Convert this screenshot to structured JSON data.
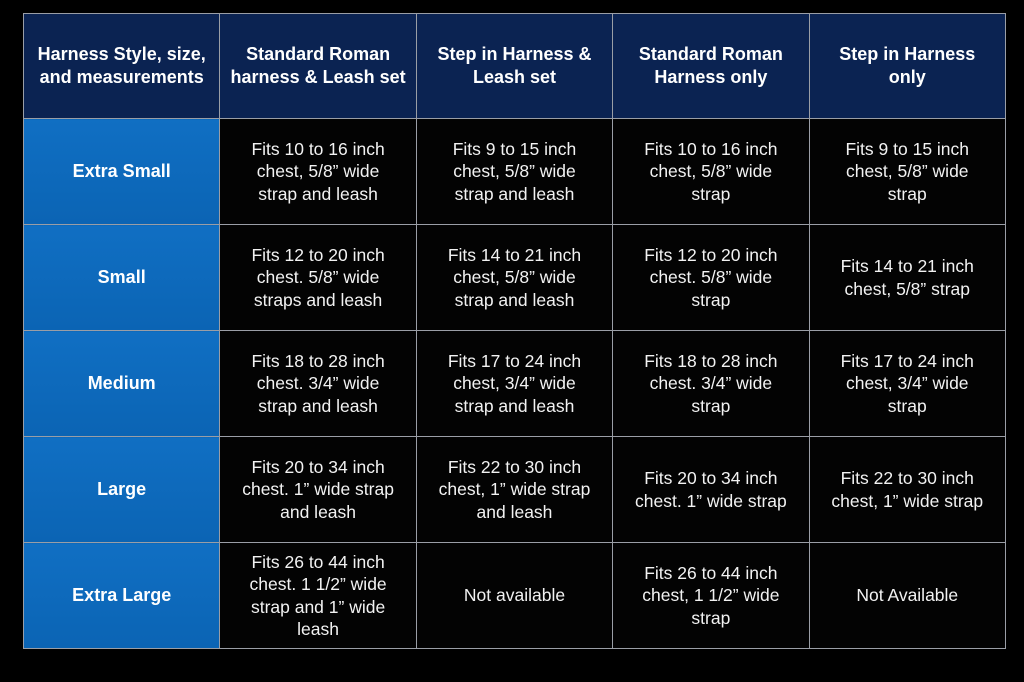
{
  "table": {
    "headers": [
      "Harness Style, size,\nand measurements",
      "Standard Roman\nharness & Leash set",
      "Step in Harness &\nLeash set",
      "Standard Roman\nHarness only",
      "Step in Harness\nonly"
    ],
    "rows": [
      {
        "size": "Extra Small",
        "cells": [
          "Fits 10 to 16 inch\nchest, 5/8” wide\nstrap and leash",
          "Fits 9 to 15 inch\nchest, 5/8” wide\nstrap and leash",
          "Fits 10 to 16 inch\nchest, 5/8” wide\nstrap",
          "Fits 9 to 15 inch\nchest, 5/8” wide\nstrap"
        ]
      },
      {
        "size": "Small",
        "cells": [
          "Fits 12 to 20 inch\nchest. 5/8” wide\nstraps and leash",
          "Fits 14 to 21 inch\nchest, 5/8” wide\nstrap and leash",
          "Fits 12 to 20 inch\nchest. 5/8” wide\nstrap",
          "Fits 14 to 21 inch\nchest, 5/8” strap"
        ]
      },
      {
        "size": "Medium",
        "cells": [
          "Fits 18 to 28 inch\nchest. 3/4” wide\nstrap and leash",
          "Fits 17 to 24 inch\nchest, 3/4” wide\nstrap and leash",
          "Fits 18 to 28 inch\nchest. 3/4” wide\nstrap",
          "Fits 17 to 24 inch\nchest, 3/4” wide\nstrap"
        ]
      },
      {
        "size": "Large",
        "cells": [
          "Fits 20 to 34 inch\nchest. 1” wide strap\nand leash",
          "Fits 22 to 30 inch\nchest, 1” wide strap\nand leash",
          "Fits 20 to 34 inch\nchest. 1” wide strap",
          "Fits 22 to 30 inch\nchest, 1” wide strap"
        ]
      },
      {
        "size": "Extra Large",
        "cells": [
          "Fits 26 to 44 inch\nchest. 1 1/2” wide\nstrap and 1” wide\nleash",
          "Not available",
          "Fits 26 to 44 inch\nchest, 1 1/2” wide\nstrap",
          "Not Available"
        ]
      }
    ]
  },
  "colors": {
    "header_bg": "#0b2352",
    "size_column_bg": "#106fc3",
    "cell_bg": "#030303",
    "border": "#9a9ea6"
  }
}
